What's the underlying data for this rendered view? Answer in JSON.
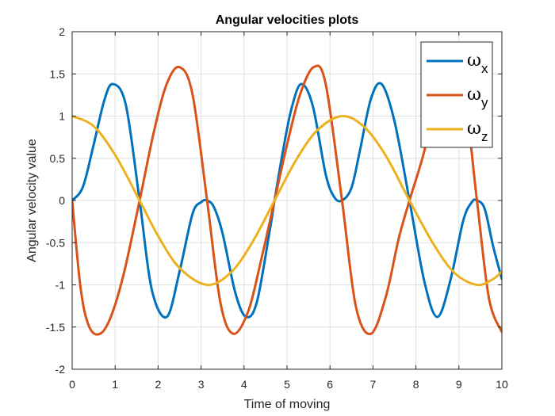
{
  "chart_data": {
    "type": "line",
    "title": "Angular velocities plots",
    "xlabel": "Time of moving",
    "ylabel": "Angular velocity value",
    "xlim": [
      0,
      10
    ],
    "ylim": [
      -2,
      2
    ],
    "xticks": [
      0,
      1,
      2,
      3,
      4,
      5,
      6,
      7,
      8,
      9,
      10
    ],
    "yticks": [
      -2,
      -1.5,
      -1,
      -0.5,
      0,
      0.5,
      1,
      1.5,
      2
    ],
    "xtick_labels": [
      "0",
      "1",
      "2",
      "3",
      "4",
      "5",
      "6",
      "7",
      "8",
      "9",
      "10"
    ],
    "ytick_labels": [
      "-2",
      "-1.5",
      "-1",
      "-0.5",
      "0",
      "0.5",
      "1",
      "1.5",
      "2"
    ],
    "grid": true,
    "legend_position": "top-right",
    "series": [
      {
        "name": "ωx",
        "legend_symbol": "ω",
        "legend_sub": "x",
        "color": "#0072BD",
        "x": [
          0,
          0.25,
          0.5,
          0.75,
          0.95,
          1.25,
          1.57,
          1.85,
          2.2,
          2.5,
          2.8,
          3.0,
          3.14,
          3.3,
          3.5,
          3.8,
          4.05,
          4.3,
          4.6,
          4.71,
          4.9,
          5.1,
          5.33,
          5.6,
          5.9,
          6.1,
          6.28,
          6.5,
          6.7,
          6.95,
          7.2,
          7.5,
          7.85,
          8.2,
          8.5,
          8.8,
          9.1,
          9.3,
          9.42,
          9.6,
          9.8,
          10
        ],
        "y": [
          0,
          0.16,
          0.66,
          1.19,
          1.38,
          1.13,
          0,
          -1.05,
          -1.38,
          -0.84,
          -0.16,
          -0.02,
          0,
          -0.08,
          -0.39,
          -1.1,
          -1.38,
          -1.2,
          -0.35,
          0,
          0.57,
          1.08,
          1.38,
          1.12,
          0.31,
          0.04,
          0,
          0.15,
          0.6,
          1.2,
          1.38,
          0.94,
          0,
          -0.97,
          -1.38,
          -0.95,
          -0.24,
          -0.02,
          0,
          -0.1,
          -0.55,
          -0.93
        ]
      },
      {
        "name": "ωy",
        "legend_symbol": "ω",
        "legend_sub": "y",
        "color": "#D95319",
        "x": [
          0,
          0.2,
          0.4,
          0.65,
          0.9,
          1.2,
          1.57,
          1.9,
          2.2,
          2.5,
          2.8,
          3.14,
          3.45,
          3.75,
          4.1,
          4.4,
          4.71,
          5.0,
          5.3,
          5.62,
          5.9,
          6.28,
          6.6,
          6.95,
          7.3,
          7.6,
          7.85,
          8.15,
          8.45,
          8.75,
          9.1,
          9.42,
          9.7,
          10
        ],
        "y": [
          0,
          -1.05,
          -1.5,
          -1.58,
          -1.38,
          -0.87,
          0,
          0.81,
          1.38,
          1.58,
          1.26,
          0,
          -1.21,
          -1.58,
          -1.31,
          -0.7,
          0,
          0.66,
          1.25,
          1.58,
          1.38,
          0,
          -1.25,
          -1.58,
          -1.14,
          -0.45,
          0,
          0.5,
          1.1,
          1.55,
          1.34,
          0,
          -1.16,
          -1.56
        ]
      },
      {
        "name": "ωz",
        "legend_symbol": "ω",
        "legend_sub": "z",
        "color": "#EDB120",
        "x": [
          0,
          0.5,
          1.0,
          1.57,
          2.0,
          2.5,
          3.14,
          3.7,
          4.2,
          4.71,
          5.2,
          5.7,
          6.28,
          6.8,
          7.3,
          7.85,
          8.4,
          8.9,
          9.42,
          9.8,
          10
        ],
        "y": [
          1,
          0.88,
          0.54,
          0,
          -0.42,
          -0.8,
          -1,
          -0.85,
          -0.49,
          0,
          0.47,
          0.83,
          1,
          0.87,
          0.53,
          0,
          -0.51,
          -0.86,
          -1,
          -0.93,
          -0.84
        ]
      }
    ]
  }
}
